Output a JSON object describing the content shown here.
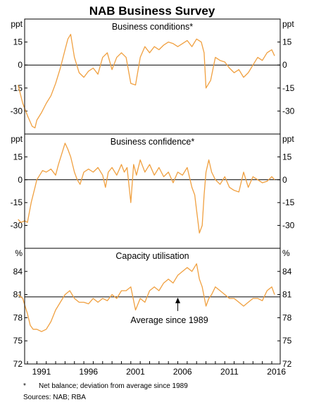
{
  "title": "NAB Business Survey",
  "footnote": "Net balance; deviation from average since 1989",
  "footnote_marker": "*",
  "sources": "Sources:   NAB; RBA",
  "colors": {
    "series": "#f0a040",
    "axis": "#000000",
    "grid": "#c8c8c8"
  },
  "chart_data": [
    {
      "type": "line",
      "title": "Business conditions*",
      "unit_left": "ppt",
      "unit_right": "ppt",
      "ylim": [
        -45,
        30
      ],
      "yticks": [
        -30,
        -15,
        0,
        15
      ],
      "ytick_labels": [
        "-30",
        "-15",
        "0",
        "15"
      ],
      "zero_line": 0,
      "series": [
        {
          "x": [
            1989.0,
            1989.5,
            1990.0,
            1990.5,
            1990.8,
            1991.0,
            1991.5,
            1992.0,
            1992.5,
            1993.0,
            1993.5,
            1994.0,
            1994.3,
            1994.6,
            1995.0,
            1995.5,
            1996.0,
            1996.5,
            1997.0,
            1997.5,
            1998.0,
            1998.5,
            1999.0,
            1999.5,
            2000.0,
            2000.5,
            2001.0,
            2001.5,
            2002.0,
            2002.5,
            2003.0,
            2003.5,
            2004.0,
            2004.5,
            2005.0,
            2005.5,
            2006.0,
            2006.5,
            2007.0,
            2007.5,
            2008.0,
            2008.5,
            2008.8,
            2009.0,
            2009.5,
            2010.0,
            2010.5,
            2011.0,
            2011.5,
            2012.0,
            2012.5,
            2013.0,
            2013.5,
            2014.0,
            2014.5,
            2015.0,
            2015.5,
            2016.0,
            2016.3
          ],
          "values": [
            -13,
            -25,
            -33,
            -40,
            -41,
            -36,
            -31,
            -25,
            -20,
            -12,
            -2,
            10,
            17,
            20,
            5,
            -5,
            -8,
            -4,
            -2,
            -6,
            5,
            8,
            -3,
            5,
            8,
            5,
            -12,
            -13,
            5,
            12,
            8,
            12,
            10,
            13,
            15,
            14,
            12,
            14,
            16,
            12,
            17,
            15,
            8,
            -15,
            -10,
            5,
            3,
            2,
            -2,
            -5,
            -3,
            -8,
            -5,
            0,
            5,
            3,
            8,
            10,
            6
          ]
        }
      ]
    },
    {
      "type": "line",
      "title": "Business confidence*",
      "unit_left": "ppt",
      "unit_right": "ppt",
      "ylim": [
        -45,
        30
      ],
      "yticks": [
        -30,
        -15,
        0,
        15
      ],
      "ytick_labels": [
        "-30",
        "-15",
        "0",
        "15"
      ],
      "zero_line": 0,
      "series": [
        {
          "x": [
            1989.0,
            1989.3,
            1989.7,
            1990.0,
            1990.4,
            1990.8,
            1991.0,
            1991.3,
            1991.6,
            1992.0,
            1992.5,
            1993.0,
            1993.3,
            1993.7,
            1994.0,
            1994.3,
            1994.6,
            1995.0,
            1995.3,
            1995.6,
            1996.0,
            1996.5,
            1997.0,
            1997.5,
            1998.0,
            1998.3,
            1998.6,
            1999.0,
            1999.5,
            2000.0,
            2000.3,
            2000.6,
            2001.0,
            2001.3,
            2001.6,
            2002.0,
            2002.5,
            2003.0,
            2003.5,
            2004.0,
            2004.5,
            2005.0,
            2005.5,
            2006.0,
            2006.5,
            2007.0,
            2007.5,
            2007.8,
            2008.0,
            2008.3,
            2008.6,
            2008.8,
            2009.0,
            2009.3,
            2009.6,
            2010.0,
            2010.5,
            2011.0,
            2011.5,
            2012.0,
            2012.5,
            2013.0,
            2013.5,
            2014.0,
            2014.5,
            2015.0,
            2015.5,
            2016.0,
            2016.3
          ],
          "values": [
            -26,
            -28,
            -27,
            -28,
            -15,
            -5,
            0,
            3,
            6,
            5,
            7,
            3,
            10,
            18,
            24,
            20,
            15,
            5,
            0,
            -3,
            5,
            7,
            5,
            8,
            3,
            -5,
            5,
            8,
            3,
            10,
            5,
            8,
            -15,
            10,
            3,
            13,
            5,
            10,
            3,
            8,
            2,
            5,
            -2,
            5,
            3,
            8,
            -5,
            -10,
            -20,
            -35,
            -30,
            -10,
            5,
            13,
            5,
            0,
            -3,
            2,
            -5,
            -7,
            -8,
            5,
            -5,
            2,
            0,
            -2,
            -1,
            2,
            0
          ]
        }
      ]
    },
    {
      "type": "line",
      "title": "Capacity utilisation",
      "unit_left": "%",
      "unit_right": "%",
      "ylim": [
        72,
        87
      ],
      "yticks": [
        72,
        75,
        78,
        81,
        84
      ],
      "ytick_labels": [
        "72",
        "75",
        "78",
        "81",
        "84"
      ],
      "average": 80.7,
      "annotation": "Average since 1989",
      "annotation_x": 2006,
      "xlim": [
        1989.7,
        2016.9
      ],
      "xticks": [
        1991,
        1996,
        2001,
        2006,
        2011,
        2016
      ],
      "xtick_labels": [
        "1991",
        "1996",
        "2001",
        "2006",
        "2011",
        "2016"
      ],
      "series": [
        {
          "x": [
            1989.0,
            1989.5,
            1990.0,
            1990.3,
            1990.6,
            1991.0,
            1991.5,
            1992.0,
            1992.5,
            1993.0,
            1993.5,
            1994.0,
            1994.5,
            1995.0,
            1995.5,
            1996.0,
            1996.5,
            1997.0,
            1997.5,
            1998.0,
            1998.5,
            1999.0,
            1999.5,
            2000.0,
            2000.5,
            2001.0,
            2001.5,
            2002.0,
            2002.5,
            2003.0,
            2003.5,
            2004.0,
            2004.5,
            2005.0,
            2005.5,
            2006.0,
            2006.5,
            2007.0,
            2007.5,
            2008.0,
            2008.3,
            2008.6,
            2009.0,
            2009.3,
            2009.6,
            2010.0,
            2010.5,
            2011.0,
            2011.5,
            2012.0,
            2012.5,
            2013.0,
            2013.5,
            2014.0,
            2014.5,
            2015.0,
            2015.5,
            2016.0,
            2016.3
          ],
          "values": [
            81,
            80.5,
            78.5,
            77,
            76.5,
            76.5,
            76.2,
            76.5,
            77.5,
            79,
            80,
            81,
            81.5,
            80.5,
            80,
            80,
            79.8,
            80.5,
            80,
            80.5,
            80.2,
            81,
            80.5,
            81.5,
            81.5,
            82,
            79,
            80.5,
            80,
            81.5,
            82,
            81.5,
            82.5,
            83,
            82.5,
            83.5,
            84,
            84.5,
            84,
            85,
            83,
            82,
            79.5,
            80.5,
            81,
            82,
            81.5,
            81,
            80.5,
            80.5,
            80,
            79.5,
            80,
            80.5,
            80.5,
            80.2,
            81.5,
            82,
            81
          ]
        }
      ]
    }
  ]
}
